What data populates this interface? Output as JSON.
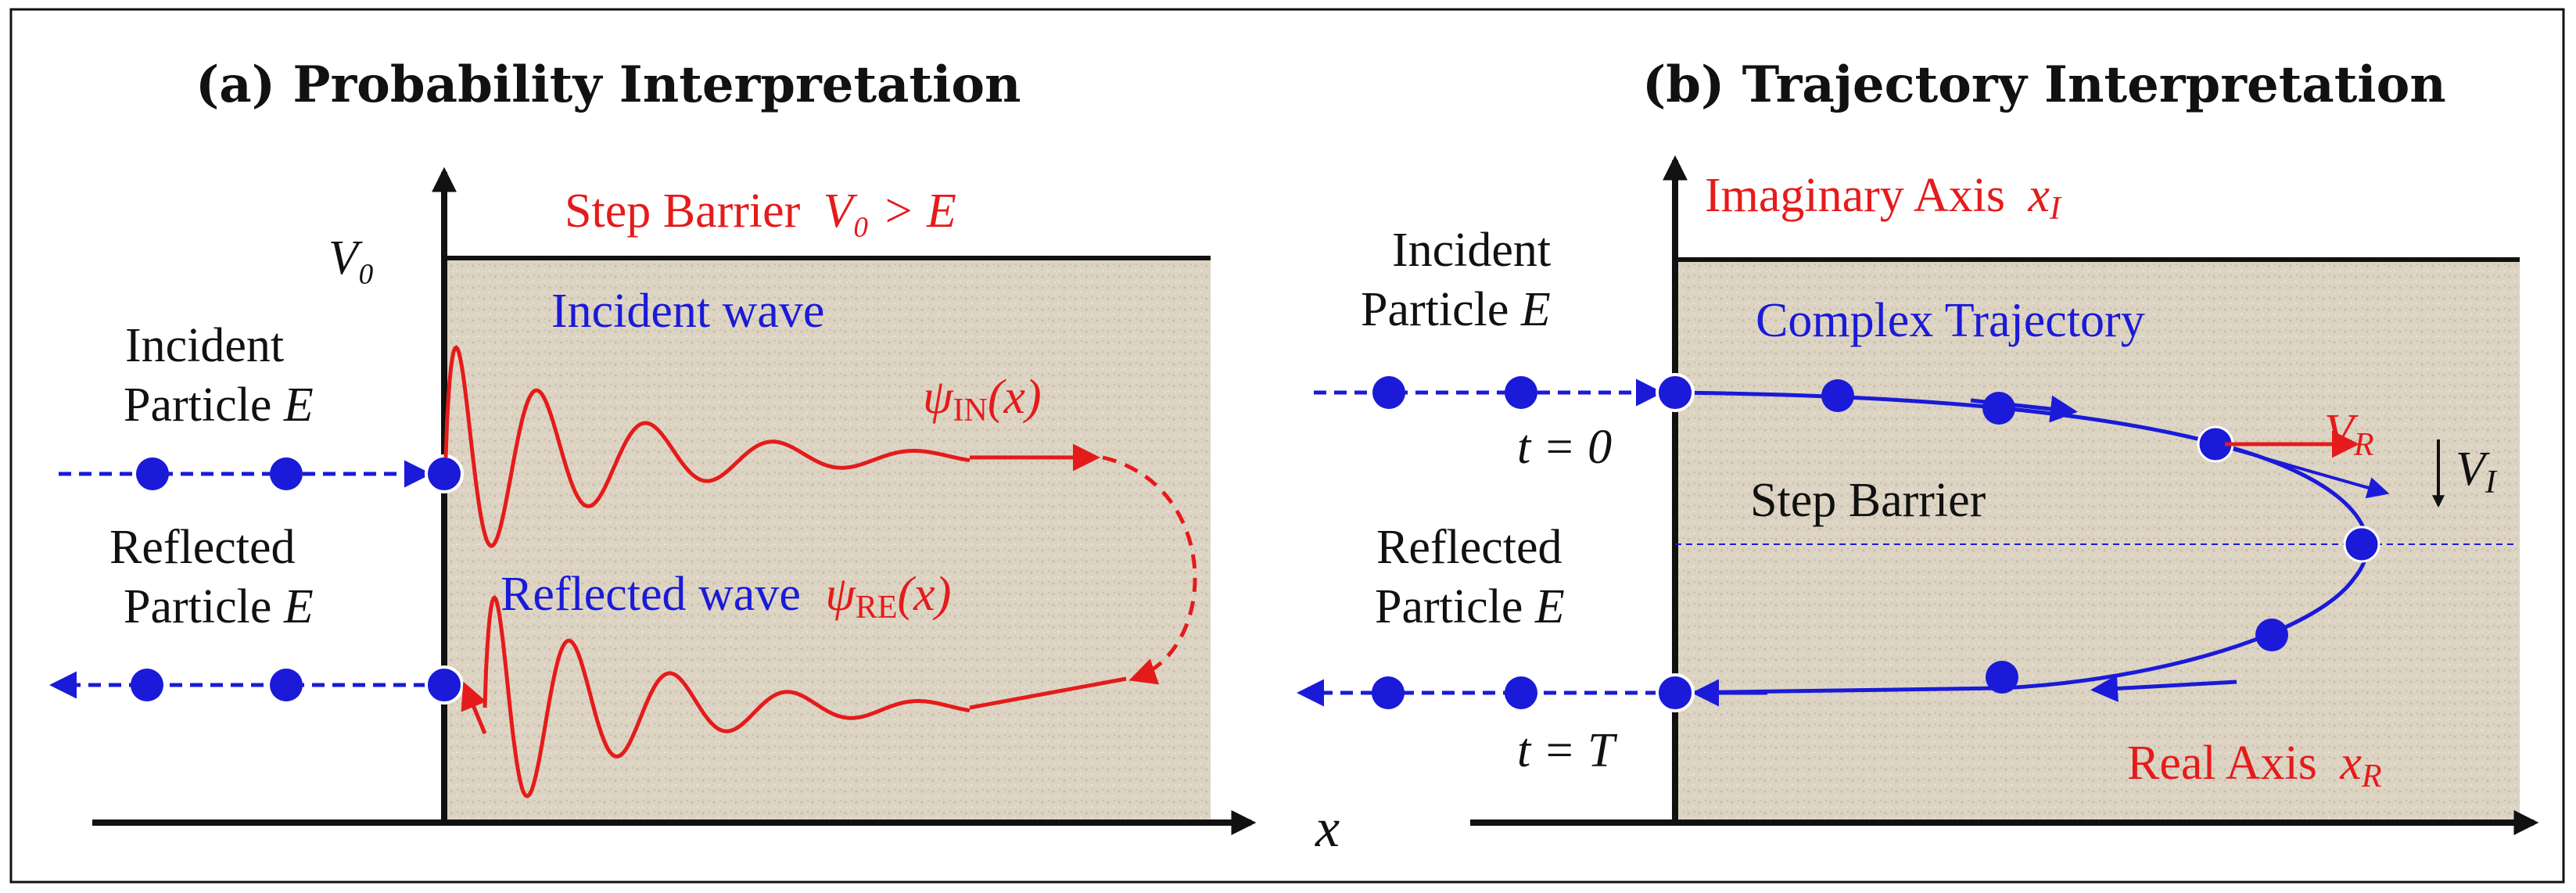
{
  "panel_a": {
    "title": "(a) Probability Interpretation",
    "barrier_label": "Step Barrier",
    "barrier_condition": "V₀ > E",
    "v0_label": "V₀",
    "incident_wave": "Incident wave",
    "psi_in": "ψ",
    "psi_in_sub": "IN",
    "psi_in_arg": "(x)",
    "reflected_wave": "Reflected wave",
    "psi_re": "ψ",
    "psi_re_sub": "RE",
    "psi_re_arg": "(x)",
    "incident_line1": "Incident",
    "incident_line2": "Particle",
    "incident_E": "E",
    "reflected_line1": "Reflected",
    "reflected_line2": "Particle",
    "reflected_E": "E",
    "x_axis": "x"
  },
  "panel_b": {
    "title": "(b) Trajectory Interpretation",
    "imag_axis": "Imaginary Axis",
    "imag_var": "x",
    "imag_sub": "I",
    "incident_line1": "Incident",
    "incident_line2": "Particle",
    "incident_E": "E",
    "complex_traj": "Complex Trajectory",
    "vr": "V",
    "vr_sub": "R",
    "vi": "V",
    "vi_sub": "I",
    "t0": "t = 0",
    "step_barrier": "Step Barrier",
    "reflected_line1": "Reflected",
    "reflected_line2": "Particle",
    "reflected_E": "E",
    "tT": "t = T",
    "real_axis": "Real Axis",
    "real_var": "x",
    "real_sub": "R"
  },
  "colors": {
    "red": "#e51b1b",
    "blue": "#1a1ad8",
    "barrier_fill": "#dcd3c2",
    "ink": "#111111"
  }
}
